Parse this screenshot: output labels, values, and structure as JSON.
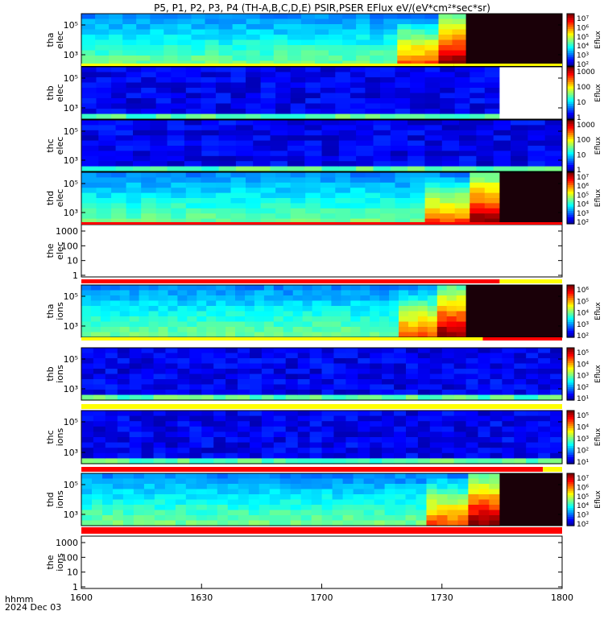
{
  "title": "P5, P1, P2, P3, P4 (TH-A,B,C,D,E) PSIR,PSER EFlux eV/(eV*cm²*sec*sr)",
  "footer": {
    "line1": "hhmm",
    "line2": "2024 Dec 03"
  },
  "colorbar_label": "Eflux",
  "chart_data": {
    "type": "heatmap",
    "x_axis": {
      "ticks": [
        "1600",
        "1630",
        "1700",
        "1730",
        "1800"
      ],
      "range": [
        "16:00",
        "18:00"
      ]
    },
    "panels": [
      {
        "name": "tha elec",
        "label_line1": "tha",
        "label_line2": "elec",
        "kind": "spectrogram",
        "species": "electrons",
        "yticks": [
          "10⁵",
          "10³"
        ],
        "log_scale": true,
        "colorbar_ticks": [
          "10⁷",
          "10⁶",
          "10⁵",
          "10⁴",
          "10³",
          "10²"
        ],
        "data_end_fraction": 0.8
      },
      {
        "name": "thb elec",
        "label_line1": "thb",
        "label_line2": "elec",
        "kind": "spectrogram",
        "species": "electrons",
        "yticks": [
          "10⁵",
          "10³"
        ],
        "log_scale": true,
        "colorbar_ticks": [
          "1000",
          "100",
          "10",
          "1"
        ],
        "data_end_fraction": 0.87
      },
      {
        "name": "thc elec",
        "label_line1": "thc",
        "label_line2": "elec",
        "kind": "spectrogram",
        "species": "electrons",
        "yticks": [
          "10⁵",
          "10³"
        ],
        "log_scale": true,
        "colorbar_ticks": [
          "1000",
          "100",
          "10",
          "1"
        ],
        "data_end_fraction": 1.0
      },
      {
        "name": "thd elec",
        "label_line1": "thd",
        "label_line2": "elec",
        "kind": "spectrogram",
        "species": "electrons",
        "yticks": [
          "10⁵",
          "10³"
        ],
        "log_scale": true,
        "colorbar_ticks": [
          "10⁷",
          "10⁶",
          "10⁵",
          "10⁴",
          "10³",
          "10²"
        ],
        "data_end_fraction": 0.87
      },
      {
        "name": "the elec",
        "label_line1": "the",
        "label_line2": "elec",
        "kind": "empty",
        "yticks": [
          "1000",
          "100",
          "10",
          "1"
        ],
        "log_scale": true
      },
      {
        "name": "tha ions",
        "label_line1": "tha",
        "label_line2": "ions",
        "kind": "spectrogram",
        "species": "ions",
        "yticks": [
          "10⁵",
          "10³"
        ],
        "log_scale": true,
        "colorbar_ticks": [
          "10⁶",
          "10⁵",
          "10⁴",
          "10³",
          "10²"
        ],
        "data_end_fraction": 0.8
      },
      {
        "name": "thb ions",
        "label_line1": "thb",
        "label_line2": "ions",
        "kind": "spectrogram",
        "species": "ions",
        "yticks": [
          "10⁵",
          "10³"
        ],
        "log_scale": true,
        "colorbar_ticks": [
          "10⁵",
          "10⁴",
          "10³",
          "10²",
          "10¹"
        ],
        "data_end_fraction": 1.0
      },
      {
        "name": "thc ions",
        "label_line1": "thc",
        "label_line2": "ions",
        "kind": "spectrogram",
        "species": "ions",
        "yticks": [
          "10⁵",
          "10³"
        ],
        "log_scale": true,
        "colorbar_ticks": [
          "10⁵",
          "10⁴",
          "10³",
          "10²",
          "10¹"
        ],
        "data_end_fraction": 1.0
      },
      {
        "name": "thd ions",
        "label_line1": "thd",
        "label_line2": "ions",
        "kind": "spectrogram",
        "species": "ions",
        "yticks": [
          "10⁵",
          "10³"
        ],
        "log_scale": true,
        "colorbar_ticks": [
          "10⁷",
          "10⁶",
          "10⁵",
          "10⁴",
          "10³",
          "10²"
        ],
        "data_end_fraction": 0.87
      },
      {
        "name": "the ions",
        "label_line1": "the",
        "label_line2": "ions",
        "kind": "empty",
        "yticks": [
          "1000",
          "100",
          "10",
          "1"
        ],
        "log_scale": true
      }
    ],
    "mode_bars": [
      {
        "after_panel": "tha elec",
        "segments": [
          {
            "end": 0.775,
            "color": "#ffff00"
          },
          {
            "end": 1.0,
            "color": "#ffff00"
          }
        ]
      },
      {
        "after_panel": "thd elec",
        "segments": [
          {
            "end": 1.0,
            "color": "#ff0000"
          }
        ]
      },
      {
        "after_panel": "the elec",
        "segments": [
          {
            "end": 0.87,
            "color": "#ff0000"
          },
          {
            "end": 1.0,
            "color": "#ffff00"
          }
        ]
      },
      {
        "after_panel": "tha ions",
        "segments": [
          {
            "end": 0.835,
            "color": "#ffff00"
          },
          {
            "end": 1.0,
            "color": "#ff0000"
          }
        ]
      },
      {
        "after_panel": "thb ions",
        "segments": [
          {
            "end": 1.0,
            "color": "#ffff00"
          }
        ]
      },
      {
        "after_panel": "thc ions",
        "segments": [
          {
            "end": 0.96,
            "color": "#ff0000"
          },
          {
            "end": 1.0,
            "color": "#ffff00"
          }
        ]
      },
      {
        "after_panel": "thd ions",
        "segments": [
          {
            "end": 1.0,
            "color": "#ff0000"
          }
        ]
      }
    ]
  }
}
